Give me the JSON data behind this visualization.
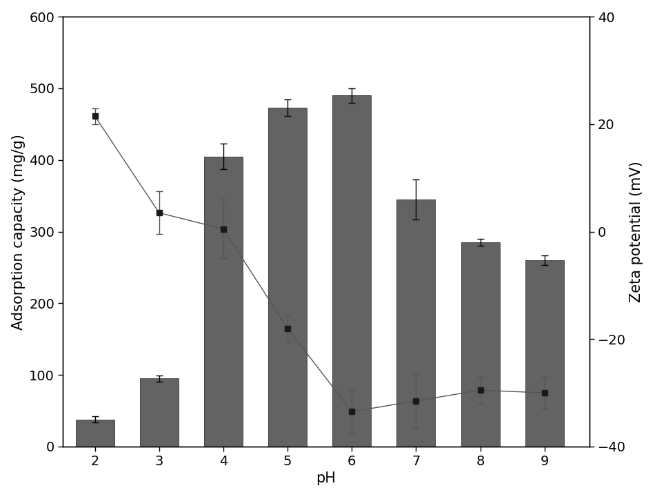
{
  "ph_values": [
    2,
    3,
    4,
    5,
    6,
    7,
    8,
    9
  ],
  "bar_heights": [
    38,
    95,
    405,
    473,
    490,
    345,
    285,
    260
  ],
  "bar_errors": [
    4,
    4,
    18,
    12,
    10,
    28,
    5,
    7
  ],
  "bar_color": "#636363",
  "bar_edgecolor": "#444444",
  "zeta_values": [
    21.5,
    3.5,
    0.5,
    -18.0,
    -33.5,
    -31.5,
    -29.5,
    -30.0
  ],
  "zeta_errors": [
    1.5,
    4.0,
    5.5,
    2.5,
    4.0,
    5.0,
    2.5,
    3.0
  ],
  "line_color": "#555555",
  "marker_color": "#1a1a1a",
  "ylabel_left": "Adsorption capacity (mg/g)",
  "ylabel_right": "Zeta potential (mV)",
  "xlabel": "pH",
  "ylim_left": [
    0,
    600
  ],
  "ylim_right": [
    -40,
    40
  ],
  "yticks_left": [
    0,
    100,
    200,
    300,
    400,
    500,
    600
  ],
  "yticks_right": [
    -40,
    -20,
    0,
    20,
    40
  ],
  "background_color": "#ffffff",
  "label_fontsize": 15,
  "tick_fontsize": 14,
  "bar_width": 0.6
}
